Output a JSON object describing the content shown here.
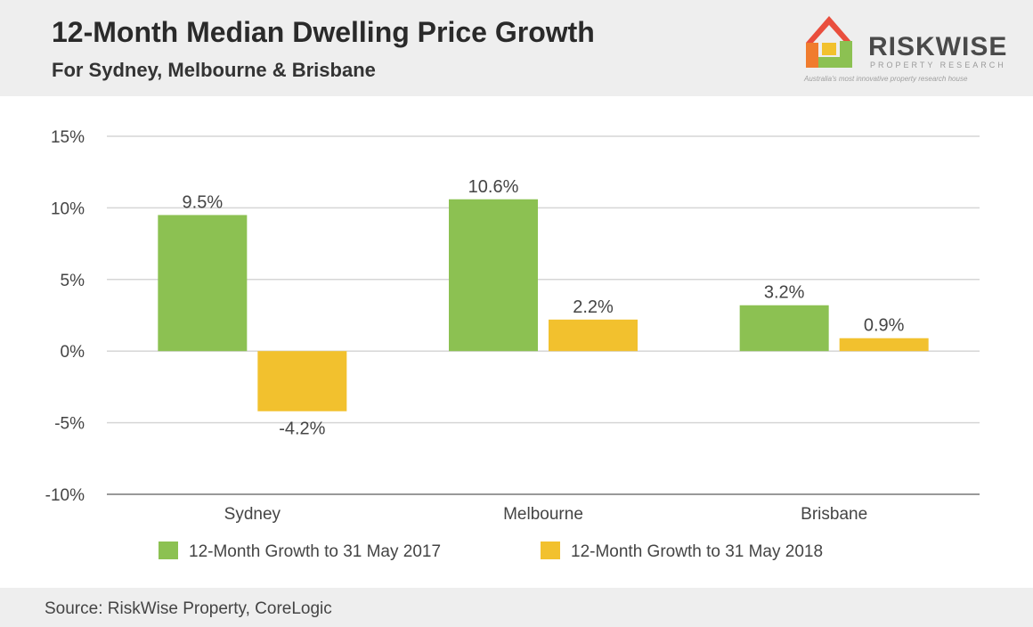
{
  "header": {
    "title": "12-Month Median Dwelling Price Growth",
    "subtitle": "For Sydney, Melbourne & Brisbane"
  },
  "logo": {
    "name": "RISKWISE",
    "sub": "PROPERTY RESEARCH",
    "tagline": "Australia's most innovative property research house"
  },
  "chart_data": {
    "type": "bar",
    "categories": [
      "Sydney",
      "Melbourne",
      "Brisbane"
    ],
    "series": [
      {
        "name": "12-Month Growth to 31 May 2017",
        "values": [
          9.5,
          10.6,
          3.2
        ],
        "labels": [
          "9.5%",
          "10.6%",
          "3.2%"
        ],
        "color": "#8cc152"
      },
      {
        "name": "12-Month Growth to 31 May 2018",
        "values": [
          -4.2,
          2.2,
          0.9
        ],
        "labels": [
          "-4.2%",
          "2.2%",
          "0.9%"
        ],
        "color": "#f2c12e"
      }
    ],
    "yticks": [
      15,
      10,
      5,
      0,
      -5,
      -10
    ],
    "ytick_labels": [
      "15%",
      "10%",
      "5%",
      "0%",
      "-5%",
      "-10%"
    ],
    "ylim": [
      -10,
      15
    ],
    "grid": true,
    "legend_position": "bottom"
  },
  "footer": {
    "source": "Source: RiskWise Property, CoreLogic"
  },
  "colors": {
    "header_bg": "#eeeeee",
    "grid": "#d6d6d6",
    "axis": "#999999"
  }
}
